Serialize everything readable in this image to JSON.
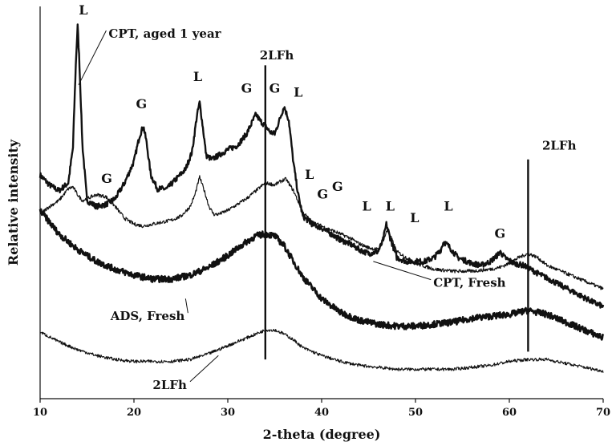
{
  "chart_data": {
    "type": "line",
    "title": "",
    "xlabel": "2-theta (degree)",
    "ylabel": "Relative intensity",
    "xlim": [
      10,
      70
    ],
    "ylim": [
      0,
      100
    ],
    "y_tick_labels_shown": false,
    "grid": false,
    "x_ticks": [
      "10",
      "20",
      "30",
      "40",
      "50",
      "60",
      "70"
    ],
    "series": [
      {
        "name": "CPT, aged 1 year",
        "stroke_width": 2.4,
        "x": [
          10.0,
          11.0,
          12.0,
          13.0,
          13.5,
          13.8,
          14.0,
          14.2,
          14.5,
          15.0,
          16.0,
          17.0,
          18.0,
          19.0,
          20.0,
          20.6,
          21.0,
          21.3,
          21.8,
          22.5,
          23.5,
          24.5,
          25.5,
          26.2,
          26.7,
          27.0,
          27.3,
          27.7,
          28.3,
          29.0,
          30.0,
          31.0,
          32.0,
          32.7,
          33.0,
          33.4,
          34.0,
          34.5,
          35.0,
          35.5,
          36.0,
          36.5,
          37.0,
          37.5,
          38.0,
          39.0,
          40.0,
          41.0,
          42.0,
          43.0,
          44.0,
          45.0,
          46.0,
          46.5,
          46.9,
          47.3,
          48.0,
          49.0,
          50.0,
          51.0,
          52.0,
          52.7,
          53.0,
          53.5,
          54.5,
          56.0,
          57.0,
          58.0,
          58.7,
          59.0,
          59.5,
          60.5,
          61.5,
          63.0,
          65.0,
          67.0,
          69.0,
          70.0
        ],
        "y": [
          57.0,
          54.5,
          53.0,
          55.0,
          64.0,
          85.0,
          95.0,
          85.0,
          65.0,
          50.5,
          49.0,
          49.5,
          51.0,
          55.0,
          60.5,
          67.0,
          69.5,
          66.0,
          57.0,
          53.5,
          53.5,
          56.0,
          58.5,
          63.0,
          72.0,
          75.5,
          70.0,
          62.0,
          61.0,
          62.0,
          63.5,
          64.5,
          67.5,
          71.0,
          72.5,
          71.0,
          69.5,
          68.0,
          67.5,
          71.0,
          74.5,
          71.0,
          60.0,
          52.0,
          46.5,
          44.5,
          43.5,
          42.0,
          40.5,
          39.5,
          38.0,
          37.0,
          37.5,
          40.0,
          44.5,
          41.0,
          36.0,
          35.0,
          35.0,
          35.0,
          36.0,
          38.0,
          40.0,
          39.0,
          36.0,
          34.5,
          34.0,
          35.0,
          36.5,
          37.5,
          36.0,
          34.5,
          34.0,
          32.0,
          29.5,
          27.0,
          24.5,
          23.5
        ]
      },
      {
        "name": "CPT, Fresh",
        "stroke_width": 1.2,
        "x": [
          10.0,
          11.0,
          12.0,
          13.0,
          13.5,
          14.0,
          14.5,
          15.0,
          16.0,
          17.0,
          18.0,
          19.0,
          20.0,
          21.0,
          22.0,
          23.0,
          24.0,
          25.0,
          26.0,
          26.5,
          27.0,
          27.5,
          28.0,
          28.5,
          29.0,
          30.0,
          31.0,
          32.0,
          33.0,
          34.0,
          35.0,
          35.7,
          36.2,
          37.0,
          38.0,
          39.0,
          40.0,
          41.0,
          42.0,
          43.0,
          44.0,
          45.0,
          46.0,
          46.5,
          47.0,
          47.5,
          48.0,
          49.0,
          50.0,
          52.0,
          54.0,
          56.0,
          58.0,
          59.0,
          60.0,
          61.0,
          62.0,
          63.0,
          64.0,
          66.0,
          68.0,
          70.0
        ],
        "y": [
          47.0,
          49.0,
          50.5,
          53.5,
          54.0,
          52.0,
          50.5,
          51.0,
          52.0,
          51.5,
          49.0,
          46.0,
          44.5,
          44.0,
          44.5,
          45.0,
          45.5,
          46.5,
          49.0,
          52.0,
          56.5,
          53.0,
          49.0,
          47.0,
          47.0,
          48.0,
          49.5,
          51.0,
          53.0,
          55.0,
          54.5,
          55.5,
          56.0,
          53.0,
          47.5,
          45.0,
          44.0,
          43.0,
          42.0,
          41.0,
          39.5,
          38.5,
          38.0,
          40.0,
          43.0,
          40.5,
          37.5,
          36.0,
          34.5,
          33.0,
          32.5,
          32.5,
          33.0,
          33.5,
          34.5,
          36.0,
          37.0,
          36.0,
          34.0,
          32.0,
          30.0,
          28.0
        ]
      },
      {
        "name": "ADS, Fresh",
        "stroke_width": 2.6,
        "x": [
          10.0,
          12.0,
          14.0,
          16.0,
          18.0,
          20.0,
          22.0,
          24.0,
          26.0,
          28.0,
          30.0,
          32.0,
          33.0,
          34.0,
          35.0,
          36.0,
          37.0,
          38.0,
          40.0,
          42.0,
          44.0,
          46.0,
          48.0,
          50.0,
          52.0,
          54.0,
          56.0,
          58.0,
          60.0,
          62.0,
          64.0,
          66.0,
          68.0,
          70.0
        ],
        "y": [
          48.0,
          42.0,
          38.0,
          35.0,
          33.0,
          31.5,
          30.5,
          30.5,
          31.5,
          33.5,
          36.5,
          40.0,
          41.5,
          42.0,
          41.5,
          39.0,
          35.0,
          31.0,
          25.5,
          22.0,
          20.0,
          19.0,
          18.5,
          18.5,
          19.0,
          19.5,
          20.5,
          21.0,
          21.5,
          22.5,
          21.5,
          19.5,
          17.5,
          15.5
        ]
      },
      {
        "name": "2LFh",
        "stroke_width": 1.1,
        "x": [
          10.0,
          12.0,
          14.0,
          16.0,
          18.0,
          20.0,
          22.0,
          24.0,
          26.0,
          28.0,
          30.0,
          32.0,
          33.0,
          34.0,
          35.0,
          36.0,
          37.0,
          38.0,
          40.0,
          42.0,
          44.0,
          46.0,
          48.0,
          50.0,
          52.0,
          54.0,
          56.0,
          58.0,
          60.0,
          62.0,
          64.0,
          66.0,
          68.0,
          70.0
        ],
        "y": [
          17.0,
          14.5,
          12.5,
          11.0,
          10.0,
          9.5,
          9.5,
          9.5,
          10.0,
          11.5,
          13.5,
          15.5,
          16.5,
          17.5,
          17.5,
          16.5,
          15.0,
          13.0,
          11.0,
          9.5,
          8.5,
          8.0,
          7.5,
          7.5,
          7.5,
          7.5,
          8.0,
          8.5,
          9.5,
          10.0,
          10.0,
          9.0,
          8.0,
          7.0
        ]
      }
    ],
    "reference_lines": [
      {
        "label": "2LFh",
        "x": 34.0,
        "y_from": 10.0,
        "y_to": 85.0
      },
      {
        "label": "2LFh",
        "x": 62.0,
        "y_from": 12.0,
        "y_to": 61.0
      }
    ],
    "peak_labels": [
      {
        "text": "L",
        "x": 14.6,
        "y": 98.0
      },
      {
        "text": "G",
        "x": 17.1,
        "y": 55.0
      },
      {
        "text": "G",
        "x": 20.8,
        "y": 74.0
      },
      {
        "text": "L",
        "x": 26.8,
        "y": 81.0
      },
      {
        "text": "G",
        "x": 32.0,
        "y": 78.0
      },
      {
        "text": "G",
        "x": 35.0,
        "y": 78.0
      },
      {
        "text": "L",
        "x": 37.5,
        "y": 77.0
      },
      {
        "text": "L",
        "x": 38.7,
        "y": 56.0
      },
      {
        "text": "G",
        "x": 40.1,
        "y": 51.0
      },
      {
        "text": "G",
        "x": 41.7,
        "y": 53.0
      },
      {
        "text": "L",
        "x": 44.8,
        "y": 48.0
      },
      {
        "text": "L",
        "x": 47.3,
        "y": 48.0
      },
      {
        "text": "L",
        "x": 49.9,
        "y": 45.0
      },
      {
        "text": "L",
        "x": 53.5,
        "y": 48.0
      },
      {
        "text": "G",
        "x": 59.0,
        "y": 41.0
      }
    ],
    "annotations": [
      {
        "text": "CPT, aged 1 year",
        "x": 17.3,
        "y": 92.0,
        "point_x": 14.1,
        "point_y": 80.0
      },
      {
        "text": "2LFh",
        "x": 33.4,
        "y": 86.5
      },
      {
        "text": "2LFh",
        "x": 63.5,
        "y": 63.5
      },
      {
        "text": "CPT, Fresh",
        "x": 51.9,
        "y": 28.5,
        "point_x": 45.5,
        "point_y": 35.0
      },
      {
        "text": "ADS, Fresh",
        "x": 17.5,
        "y": 20.0,
        "point_x": 25.5,
        "point_y": 25.5
      },
      {
        "text": "2LFh",
        "x": 22.0,
        "y": 2.5,
        "point_x": 29.0,
        "point_y": 11.0
      }
    ]
  }
}
